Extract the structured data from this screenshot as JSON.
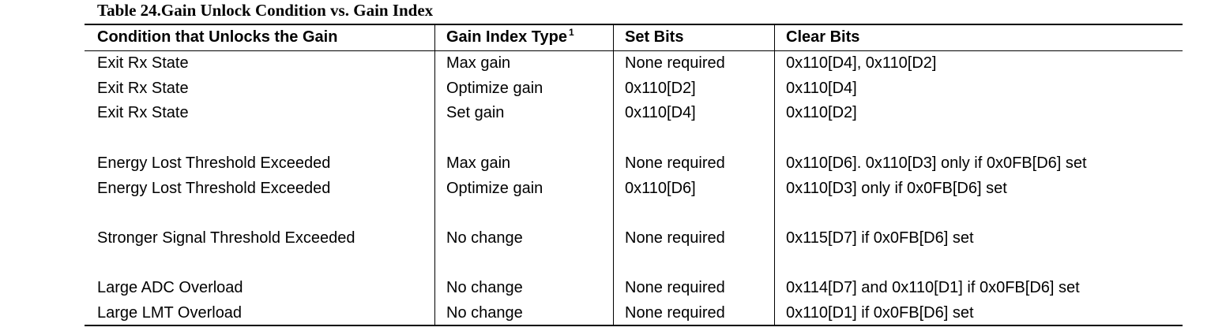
{
  "table": {
    "title": "Table 24.Gain Unlock Condition vs. Gain Index",
    "header": [
      "Condition that Unlocks the Gain",
      "Gain Index Type",
      "Set Bits",
      "Clear Bits"
    ],
    "header_note": "1",
    "groups": [
      [
        [
          "Exit Rx State",
          "Max gain",
          "None required",
          "0x110[D4], 0x110[D2]"
        ],
        [
          "Exit Rx State",
          "Optimize gain",
          "0x110[D2]",
          "0x110[D4]"
        ],
        [
          "Exit Rx State",
          "Set gain",
          "0x110[D4]",
          "0x110[D2]"
        ]
      ],
      [
        [
          "Energy Lost Threshold Exceeded",
          "Max gain",
          "None required",
          "0x110[D6]. 0x110[D3] only if 0x0FB[D6] set"
        ],
        [
          "Energy Lost Threshold Exceeded",
          "Optimize gain",
          "0x110[D6]",
          "0x110[D3] only if 0x0FB[D6] set"
        ]
      ],
      [
        [
          "Stronger Signal Threshold Exceeded",
          "No change",
          "None required",
          "0x115[D7] if 0x0FB[D6] set"
        ]
      ],
      [
        [
          "Large ADC Overload",
          "No change",
          "None required",
          "0x114[D7] and 0x110[D1] if 0x0FB[D6] set"
        ],
        [
          "Large LMT Overload",
          "No change",
          "None required",
          "0x110[D1] if 0x0FB[D6] set"
        ]
      ]
    ]
  }
}
